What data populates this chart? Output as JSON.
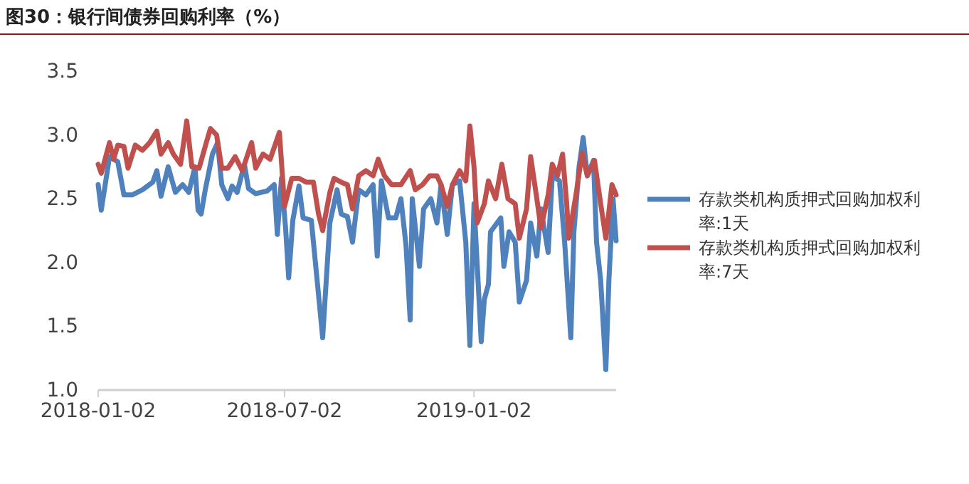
{
  "chart_data": {
    "type": "line",
    "title": "图30：银行间债券回购利率（%）",
    "ylim": [
      1.0,
      3.5
    ],
    "yticks": [
      {
        "value": 1.0,
        "label": "1.0"
      },
      {
        "value": 1.5,
        "label": "1.5"
      },
      {
        "value": 2.0,
        "label": "2.0"
      },
      {
        "value": 2.5,
        "label": "2.5"
      },
      {
        "value": 3.0,
        "label": "3.0"
      },
      {
        "value": 3.5,
        "label": "3.5"
      }
    ],
    "xlim": [
      "2018-01-02",
      "2019-05-20"
    ],
    "xticks": [
      "2018-01-02",
      "2018-07-02",
      "2019-01-02"
    ],
    "grid": false,
    "legend": "right",
    "marker": "none",
    "line_style": "solid",
    "series": [
      {
        "name": "存款类机构质押式回购加权利率:1天",
        "color": "#4f81bd",
        "x": [
          "2018-01-02",
          "2018-01-05",
          "2018-01-13",
          "2018-01-21",
          "2018-01-27",
          "2018-02-04",
          "2018-02-14",
          "2018-02-24",
          "2018-02-28",
          "2018-03-04",
          "2018-03-11",
          "2018-03-18",
          "2018-03-25",
          "2018-03-31",
          "2018-04-06",
          "2018-04-09",
          "2018-04-12",
          "2018-04-16",
          "2018-04-23",
          "2018-04-28",
          "2018-05-02",
          "2018-05-08",
          "2018-05-12",
          "2018-05-17",
          "2018-05-24",
          "2018-05-28",
          "2018-06-04",
          "2018-06-15",
          "2018-06-22",
          "2018-06-25",
          "2018-06-29",
          "2018-07-03",
          "2018-07-06",
          "2018-07-10",
          "2018-07-16",
          "2018-07-20",
          "2018-07-28",
          "2018-08-03",
          "2018-08-08",
          "2018-08-15",
          "2018-08-22",
          "2018-08-26",
          "2018-09-01",
          "2018-09-06",
          "2018-09-12",
          "2018-09-19",
          "2018-09-26",
          "2018-09-30",
          "2018-10-04",
          "2018-10-11",
          "2018-10-18",
          "2018-10-23",
          "2018-10-28",
          "2018-11-01",
          "2018-11-03",
          "2018-11-10",
          "2018-11-14",
          "2018-11-21",
          "2018-11-27",
          "2018-12-01",
          "2018-12-07",
          "2018-12-12",
          "2018-12-19",
          "2018-12-25",
          "2018-12-29",
          "2019-01-02",
          "2019-01-09",
          "2019-01-12",
          "2019-01-16",
          "2019-01-18",
          "2019-01-28",
          "2019-01-31",
          "2019-02-05",
          "2019-02-11",
          "2019-02-15",
          "2019-02-22",
          "2019-02-26",
          "2019-03-04",
          "2019-03-08",
          "2019-03-15",
          "2019-03-19",
          "2019-03-26",
          "2019-03-31",
          "2019-04-06",
          "2019-04-09",
          "2019-04-14",
          "2019-04-18",
          "2019-04-22",
          "2019-04-28",
          "2019-05-01",
          "2019-05-05",
          "2019-05-10",
          "2019-05-13",
          "2019-05-17",
          "2019-05-20"
        ],
        "values": [
          2.61,
          2.41,
          2.83,
          2.79,
          2.53,
          2.53,
          2.57,
          2.63,
          2.72,
          2.52,
          2.75,
          2.55,
          2.61,
          2.55,
          2.75,
          2.41,
          2.38,
          2.57,
          2.85,
          2.94,
          2.61,
          2.5,
          2.6,
          2.55,
          2.77,
          2.58,
          2.54,
          2.56,
          2.61,
          2.22,
          2.66,
          2.27,
          1.88,
          2.33,
          2.6,
          2.35,
          2.33,
          1.83,
          1.41,
          2.31,
          2.57,
          2.38,
          2.36,
          2.16,
          2.57,
          2.53,
          2.61,
          2.05,
          2.64,
          2.35,
          2.35,
          2.5,
          2.13,
          1.55,
          2.5,
          1.97,
          2.42,
          2.5,
          2.31,
          2.61,
          2.22,
          2.61,
          2.64,
          2.16,
          1.35,
          2.46,
          1.38,
          1.71,
          1.83,
          2.24,
          2.35,
          1.97,
          2.24,
          2.16,
          1.69,
          1.86,
          2.31,
          2.05,
          2.42,
          2.08,
          2.68,
          2.64,
          2.16,
          1.41,
          2.24,
          2.75,
          2.98,
          2.68,
          2.8,
          2.16,
          1.86,
          1.16,
          1.86,
          2.5,
          2.17
        ]
      },
      {
        "name": "存款类机构质押式回购加权利率:7天",
        "color": "#c0504d",
        "x": [
          "2018-01-02",
          "2018-01-05",
          "2018-01-13",
          "2018-01-17",
          "2018-01-21",
          "2018-01-27",
          "2018-01-31",
          "2018-02-07",
          "2018-02-14",
          "2018-02-21",
          "2018-02-28",
          "2018-03-04",
          "2018-03-11",
          "2018-03-16",
          "2018-03-23",
          "2018-03-29",
          "2018-04-03",
          "2018-04-10",
          "2018-04-17",
          "2018-04-21",
          "2018-04-27",
          "2018-05-02",
          "2018-05-08",
          "2018-05-15",
          "2018-05-22",
          "2018-05-31",
          "2018-06-04",
          "2018-06-11",
          "2018-06-18",
          "2018-06-27",
          "2018-07-02",
          "2018-07-09",
          "2018-07-16",
          "2018-07-23",
          "2018-07-30",
          "2018-08-04",
          "2018-08-08",
          "2018-08-15",
          "2018-08-19",
          "2018-08-26",
          "2018-09-01",
          "2018-09-06",
          "2018-09-12",
          "2018-09-19",
          "2018-09-26",
          "2018-10-01",
          "2018-10-07",
          "2018-10-14",
          "2018-10-23",
          "2018-11-01",
          "2018-11-06",
          "2018-11-13",
          "2018-11-20",
          "2018-11-27",
          "2018-12-01",
          "2018-12-07",
          "2018-12-12",
          "2018-12-19",
          "2018-12-25",
          "2018-12-29",
          "2019-01-02",
          "2019-01-05",
          "2019-01-12",
          "2019-01-16",
          "2019-01-23",
          "2019-01-29",
          "2019-02-04",
          "2019-02-11",
          "2019-02-15",
          "2019-02-22",
          "2019-02-26",
          "2019-03-04",
          "2019-03-08",
          "2019-03-15",
          "2019-03-19",
          "2019-03-24",
          "2019-03-29",
          "2019-04-02",
          "2019-04-04",
          "2019-04-11",
          "2019-04-17",
          "2019-04-22",
          "2019-04-29",
          "2019-05-05",
          "2019-05-10",
          "2019-05-16",
          "2019-05-20"
        ],
        "values": [
          2.77,
          2.7,
          2.94,
          2.81,
          2.92,
          2.91,
          2.74,
          2.92,
          2.88,
          2.94,
          3.03,
          2.85,
          2.94,
          2.85,
          2.77,
          3.11,
          2.75,
          2.74,
          2.94,
          3.05,
          3.0,
          2.74,
          2.74,
          2.83,
          2.72,
          2.94,
          2.74,
          2.85,
          2.81,
          3.02,
          2.44,
          2.66,
          2.66,
          2.63,
          2.63,
          2.38,
          2.25,
          2.55,
          2.66,
          2.63,
          2.61,
          2.42,
          2.68,
          2.72,
          2.68,
          2.81,
          2.68,
          2.61,
          2.61,
          2.72,
          2.57,
          2.61,
          2.68,
          2.68,
          2.61,
          2.44,
          2.61,
          2.72,
          2.64,
          3.07,
          2.75,
          2.31,
          2.46,
          2.64,
          2.5,
          2.77,
          2.5,
          2.46,
          2.19,
          2.42,
          2.83,
          2.5,
          2.27,
          2.53,
          2.77,
          2.68,
          2.85,
          2.46,
          2.19,
          2.53,
          2.86,
          2.68,
          2.8,
          2.46,
          2.19,
          2.61,
          2.53
        ]
      }
    ]
  }
}
